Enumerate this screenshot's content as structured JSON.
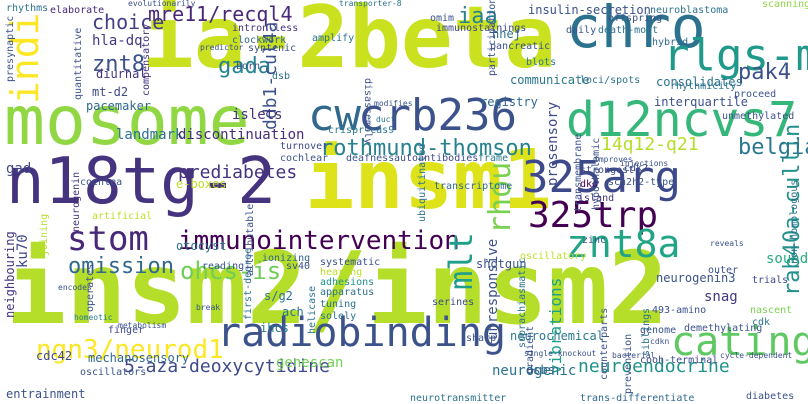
{
  "words": [
    {
      "text": "insm2/insm2",
      "color": "#b5de2b"
    },
    {
      "text": "ia-2beta",
      "color": "#cae11f"
    },
    {
      "text": "mosome",
      "color": "#90d743"
    },
    {
      "text": "insm1",
      "color": "#dde318"
    },
    {
      "text": "n18tg-2",
      "color": "#46337f"
    },
    {
      "text": "chro",
      "color": "#2c728e"
    },
    {
      "text": "rlgs-m",
      "color": "#1f998a"
    },
    {
      "text": "crb236",
      "color": "#3b528b"
    },
    {
      "text": "d12ncvs7",
      "color": "#35b779"
    },
    {
      "text": "cw",
      "color": "#31688e"
    },
    {
      "text": "325arg",
      "color": "#3e4989"
    },
    {
      "text": "325trp",
      "color": "#440154"
    },
    {
      "text": "catings",
      "color": "#5ec962"
    },
    {
      "text": "radiobinding",
      "color": "#3b528b"
    },
    {
      "text": "immunointervention",
      "color": "#440154"
    },
    {
      "text": "stom",
      "color": "#482878"
    },
    {
      "text": "znt8a",
      "color": "#21a585"
    },
    {
      "text": "rothmund-thomson",
      "color": "#26828e"
    },
    {
      "text": "indi",
      "color": "#fde725"
    },
    {
      "text": "ngn3/neurod1",
      "color": "#fde725"
    },
    {
      "text": "ohcs-is",
      "color": "#6ece58"
    },
    {
      "text": "omission",
      "color": "#31688e"
    },
    {
      "text": "rhou",
      "color": "#7ad151"
    },
    {
      "text": "mlt",
      "color": "#1f9e89"
    },
    {
      "text": "pak4",
      "color": "#3b528b"
    },
    {
      "text": "rab40a-cullin",
      "color": "#21918c"
    },
    {
      "text": "belgian",
      "color": "#2a788e"
    },
    {
      "text": "mre11/recql4",
      "color": "#482878"
    },
    {
      "text": "iaa",
      "color": "#26828e"
    },
    {
      "text": "znt8",
      "color": "#3b528b"
    },
    {
      "text": "gada",
      "color": "#25848e"
    },
    {
      "text": "ddb1-cul4a",
      "color": "#3b528b"
    },
    {
      "text": "choice",
      "color": "#433e85"
    },
    {
      "text": "14q12-q21",
      "color": "#b5de2b"
    },
    {
      "text": "prediabetes",
      "color": "#46337f"
    },
    {
      "text": "neuroendocrine",
      "color": "#20928c"
    },
    {
      "text": "5-aza-deoxycytidine",
      "color": "#3e4a89"
    },
    {
      "text": "communicate",
      "color": "#2a788e"
    },
    {
      "text": "consolidates",
      "color": "#2c728e"
    },
    {
      "text": "interquartile",
      "color": "#3b528b"
    },
    {
      "text": "gad",
      "color": "#404688"
    },
    {
      "text": "hla-dq",
      "color": "#443983"
    },
    {
      "text": "islets",
      "color": "#46327e"
    },
    {
      "text": "landmark",
      "color": "#2c728e"
    },
    {
      "text": "discontinuation",
      "color": "#472d7b"
    },
    {
      "text": "registry",
      "color": "#31688e"
    },
    {
      "text": "prosensory",
      "color": "#3e4a89"
    },
    {
      "text": "unresponsive",
      "color": "#3b528b"
    },
    {
      "text": "vibrations",
      "color": "#1fa188"
    },
    {
      "text": "neurogenin3",
      "color": "#3b528b"
    },
    {
      "text": "mechanosensory",
      "color": "#31688e"
    },
    {
      "text": "entrainment",
      "color": "#3b528b"
    },
    {
      "text": "neurogenic",
      "color": "#2c728e"
    },
    {
      "text": "shotgun",
      "color": "#3b528b"
    },
    {
      "text": "sound",
      "color": "#27ad81"
    },
    {
      "text": "snag",
      "color": "#443983"
    },
    {
      "text": "dsbs",
      "color": "#31688e"
    },
    {
      "text": "genescan",
      "color": "#73d056"
    },
    {
      "text": "otocyst",
      "color": "#2c728e"
    },
    {
      "text": "e-boxes",
      "color": "#bddf26"
    },
    {
      "text": "mt-d2",
      "color": "#3e4a89"
    },
    {
      "text": "diurnal",
      "color": "#46337f"
    },
    {
      "text": "pacemaker",
      "color": "#31688e"
    },
    {
      "text": "cdc42",
      "color": "#3e4a89"
    },
    {
      "text": "ihcs",
      "color": "#2a788e"
    },
    {
      "text": "insulin-secretion",
      "color": "#3b528b"
    },
    {
      "text": "transporter-8",
      "color": "#2c728e"
    },
    {
      "text": "nhej",
      "color": "#2c728e"
    },
    {
      "text": "omim",
      "color": "#3b528b"
    },
    {
      "text": "immunostainings",
      "color": "#3e4989"
    },
    {
      "text": "elaborate",
      "color": "#482878"
    },
    {
      "text": "intron-less",
      "color": "#46337f"
    },
    {
      "text": "clockwork",
      "color": "#31688e"
    },
    {
      "text": "disassembly",
      "color": "#3b528b"
    },
    {
      "text": "neurochemical",
      "color": "#2a788e"
    },
    {
      "text": "helicase",
      "color": "#2c728e"
    },
    {
      "text": "ionizing",
      "color": "#31688e"
    },
    {
      "text": "adhesions",
      "color": "#21918c"
    },
    {
      "text": "tuning",
      "color": "#2c728e"
    },
    {
      "text": "serines",
      "color": "#3e4a89"
    },
    {
      "text": "apparatus",
      "color": "#2c728e"
    },
    {
      "text": "zinc",
      "color": "#3b528b"
    },
    {
      "text": "dko",
      "color": "#440154"
    },
    {
      "text": "island",
      "color": "#46327e"
    },
    {
      "text": "strongest",
      "color": "#3e4a89"
    },
    {
      "text": "neuroblastoma",
      "color": "#2c728e"
    },
    {
      "text": "scanning",
      "color": "#8fd744"
    },
    {
      "text": "offspring",
      "color": "#3b528b"
    },
    {
      "text": "loci/spots",
      "color": "#2c728e"
    },
    {
      "text": "proceed",
      "color": "#3b528b"
    },
    {
      "text": "rhythmicity",
      "color": "#2c728e"
    },
    {
      "text": "unmethylated",
      "color": "#3b528b"
    },
    {
      "text": "hybrid",
      "color": "#31688e"
    },
    {
      "text": "non-homologous",
      "color": "#2c728e"
    },
    {
      "text": "demethylating",
      "color": "#3b528b"
    },
    {
      "text": "cooh-terminal",
      "color": "#3e4a89"
    },
    {
      "text": "trans-differentiate",
      "color": "#31688e"
    },
    {
      "text": "neurotransmitter",
      "color": "#2c728e"
    },
    {
      "text": "diabetes",
      "color": "#3b528b"
    },
    {
      "text": "sharp",
      "color": "#3b528b"
    },
    {
      "text": "solely",
      "color": "#2c728e"
    },
    {
      "text": "first-degree",
      "color": "#2c728e"
    },
    {
      "text": "oscillators",
      "color": "#3b528b"
    },
    {
      "text": "finger",
      "color": "#3e4a89"
    },
    {
      "text": "ach",
      "color": "#2a788e"
    },
    {
      "text": "s/g2",
      "color": "#2c728e"
    },
    {
      "text": "sv40",
      "color": "#3b528b"
    },
    {
      "text": "493-amino",
      "color": "#3b528b"
    },
    {
      "text": "trials",
      "color": "#3e4a89"
    },
    {
      "text": "outer",
      "color": "#3b528b"
    },
    {
      "text": "genome",
      "color": "#3b528b"
    },
    {
      "text": "nascent",
      "color": "#7ad151"
    },
    {
      "text": "cdk",
      "color": "#2c728e"
    },
    {
      "text": "siblings",
      "color": "#2c728e"
    },
    {
      "text": "cdk2",
      "color": "#3e4a89"
    },
    {
      "text": "frame",
      "color": "#2a788e"
    },
    {
      "text": "deafness",
      "color": "#3b528b"
    },
    {
      "text": "autoantibodies",
      "color": "#3e4a89"
    },
    {
      "text": "cochlear",
      "color": "#3b528b"
    },
    {
      "text": "turnover",
      "color": "#3e4a89"
    },
    {
      "text": "crispr-cas9",
      "color": "#2a788e"
    },
    {
      "text": "neurogenin",
      "color": "#46337f"
    },
    {
      "text": "artificial",
      "color": "#bddf26"
    },
    {
      "text": "cochlea",
      "color": "#3b528b"
    },
    {
      "text": "joining",
      "color": "#b5de2b"
    },
    {
      "text": "ku70",
      "color": "#3e4a89"
    },
    {
      "text": "neighbouring",
      "color": "#46337f"
    },
    {
      "text": "transcriptome",
      "color": "#31688e"
    },
    {
      "text": "oscillatory",
      "color": "#bddf26"
    },
    {
      "text": "ubiquitinated",
      "color": "#2c728e"
    },
    {
      "text": "scn2h2-type",
      "color": "#3b528b"
    },
    {
      "text": "born",
      "color": "#3b528b"
    },
    {
      "text": "dsb",
      "color": "#2c728e"
    },
    {
      "text": "syntenic",
      "color": "#3b528b"
    },
    {
      "text": "amplify",
      "color": "#2c728e"
    },
    {
      "text": "compensatory",
      "color": "#46337f"
    },
    {
      "text": "daily",
      "color": "#3b528b"
    },
    {
      "text": "death-most",
      "color": "#2c728e"
    },
    {
      "text": "participation",
      "color": "#3b528b"
    },
    {
      "text": "pancreatic",
      "color": "#3b528b"
    },
    {
      "text": "blots",
      "color": "#2a788e"
    },
    {
      "text": "rhythms",
      "color": "#2c728e"
    },
    {
      "text": "evolutionarily",
      "color": "#3b528b"
    },
    {
      "text": "presynaptic",
      "color": "#3b528b"
    },
    {
      "text": "quantitative",
      "color": "#3b528b"
    },
    {
      "text": "reading",
      "color": "#3b528b"
    },
    {
      "text": "hearing",
      "color": "#bddf26"
    },
    {
      "text": "systematic",
      "color": "#3b528b"
    },
    {
      "text": "prevention",
      "color": "#3b528b"
    },
    {
      "text": "cdkn",
      "color": "#3b528b"
    },
    {
      "text": "single-knockout",
      "color": "#3b528b"
    },
    {
      "text": "counterparts",
      "color": "#3b528b"
    },
    {
      "text": "bacterial",
      "color": "#3b528b"
    },
    {
      "text": "cycle-dependent",
      "color": "#3b528b"
    },
    {
      "text": "hypothalamic",
      "color": "#3b528b"
    },
    {
      "text": "transmembrane",
      "color": "#3b528b"
    },
    {
      "text": "suprachiasmatic",
      "color": "#2c728e"
    },
    {
      "text": "reveals",
      "color": "#3b528b"
    },
    {
      "text": "injections",
      "color": "#3b528b"
    },
    {
      "text": "improves",
      "color": "#3b528b"
    },
    {
      "text": "predictor",
      "color": "#3b528b"
    },
    {
      "text": "gradient",
      "color": "#3b528b"
    },
    {
      "text": "modifies",
      "color": "#3b528b"
    },
    {
      "text": "duct",
      "color": "#2c728e"
    },
    {
      "text": "attributable",
      "color": "#3b528b"
    },
    {
      "text": "encodes",
      "color": "#3b528b"
    },
    {
      "text": "metabolism",
      "color": "#3b528b"
    },
    {
      "text": "break",
      "color": "#3b528b"
    },
    {
      "text": "homeotic",
      "color": "#2a788e"
    },
    {
      "text": "operates",
      "color": "#3b528b"
    }
  ]
}
